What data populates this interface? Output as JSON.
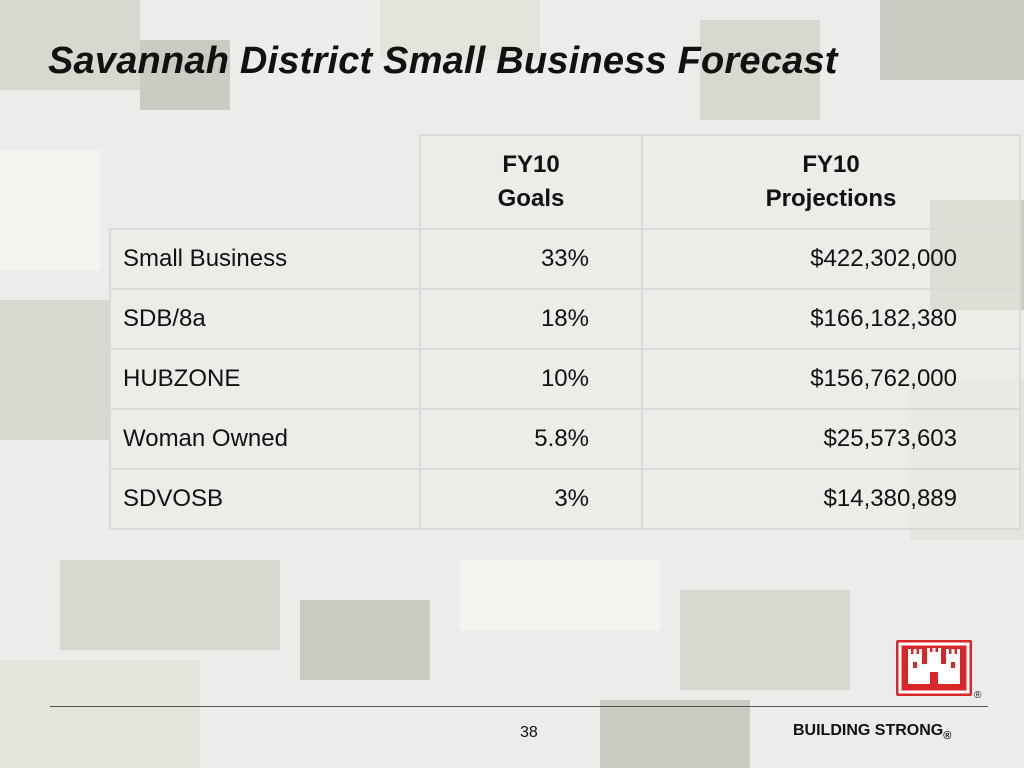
{
  "slide": {
    "title": "Savannah District Small Business Forecast",
    "page_number": "38",
    "footer_brand": "BUILDING STRONG",
    "registered_mark": "®"
  },
  "table": {
    "headers": {
      "goals_line1": "FY10",
      "goals_line2": "Goals",
      "projections_line1": "FY10",
      "projections_line2": "Projections"
    },
    "rows": [
      {
        "label": "Small Business",
        "goal": "33%",
        "projection": "$422,302,000"
      },
      {
        "label": "SDB/8a",
        "goal": "18%",
        "projection": "$166,182,380"
      },
      {
        "label": "HUBZONE",
        "goal": "10%",
        "projection": "$156,762,000"
      },
      {
        "label": "Woman Owned",
        "goal": "5.8%",
        "projection": "$25,573,603"
      },
      {
        "label": "SDVOSB",
        "goal": "3%",
        "projection": "$14,380,889"
      }
    ]
  },
  "colors": {
    "logo_red": "#d9262b",
    "background": "#ececea"
  },
  "icons": {
    "logo": "castle-logo-icon"
  }
}
